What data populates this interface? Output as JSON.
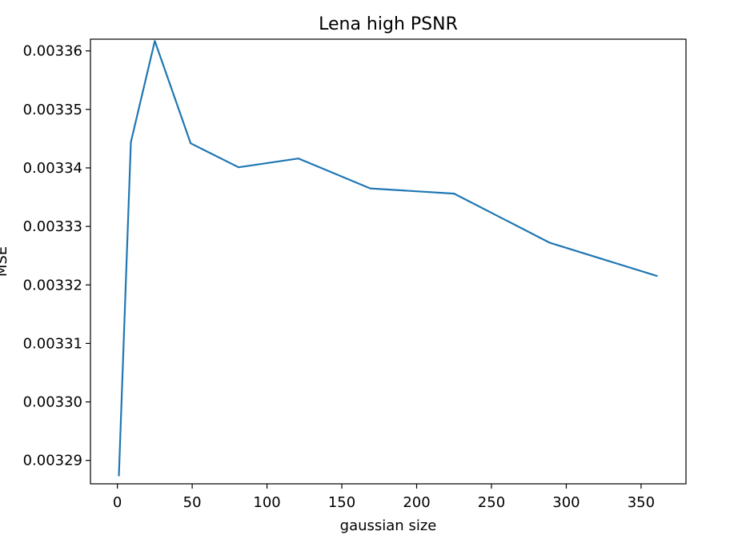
{
  "chart_data": {
    "type": "line",
    "title": "Lena high PSNR",
    "xlabel": "gaussian size",
    "ylabel": "MSE",
    "xlim": [
      -18,
      380
    ],
    "ylim": [
      0.003286,
      0.003362
    ],
    "xticks": [
      0,
      50,
      100,
      150,
      200,
      250,
      300,
      350
    ],
    "xtick_labels": [
      "0",
      "50",
      "100",
      "150",
      "200",
      "250",
      "300",
      "350"
    ],
    "yticks": [
      0.00329,
      0.0033,
      0.00331,
      0.00332,
      0.00333,
      0.00334,
      0.00335,
      0.00336
    ],
    "ytick_labels": [
      "0.00329",
      "0.00330",
      "0.00331",
      "0.00332",
      "0.00333",
      "0.00334",
      "0.00335",
      "0.00336"
    ],
    "grid": false,
    "color": "#1f77b4",
    "x": [
      1,
      9,
      25,
      49,
      81,
      121,
      169,
      225,
      289,
      361
    ],
    "y": [
      0.0032873,
      0.0033444,
      0.0033617,
      0.0033442,
      0.0033401,
      0.0033416,
      0.0033365,
      0.0033356,
      0.0033272,
      0.0033215
    ]
  }
}
